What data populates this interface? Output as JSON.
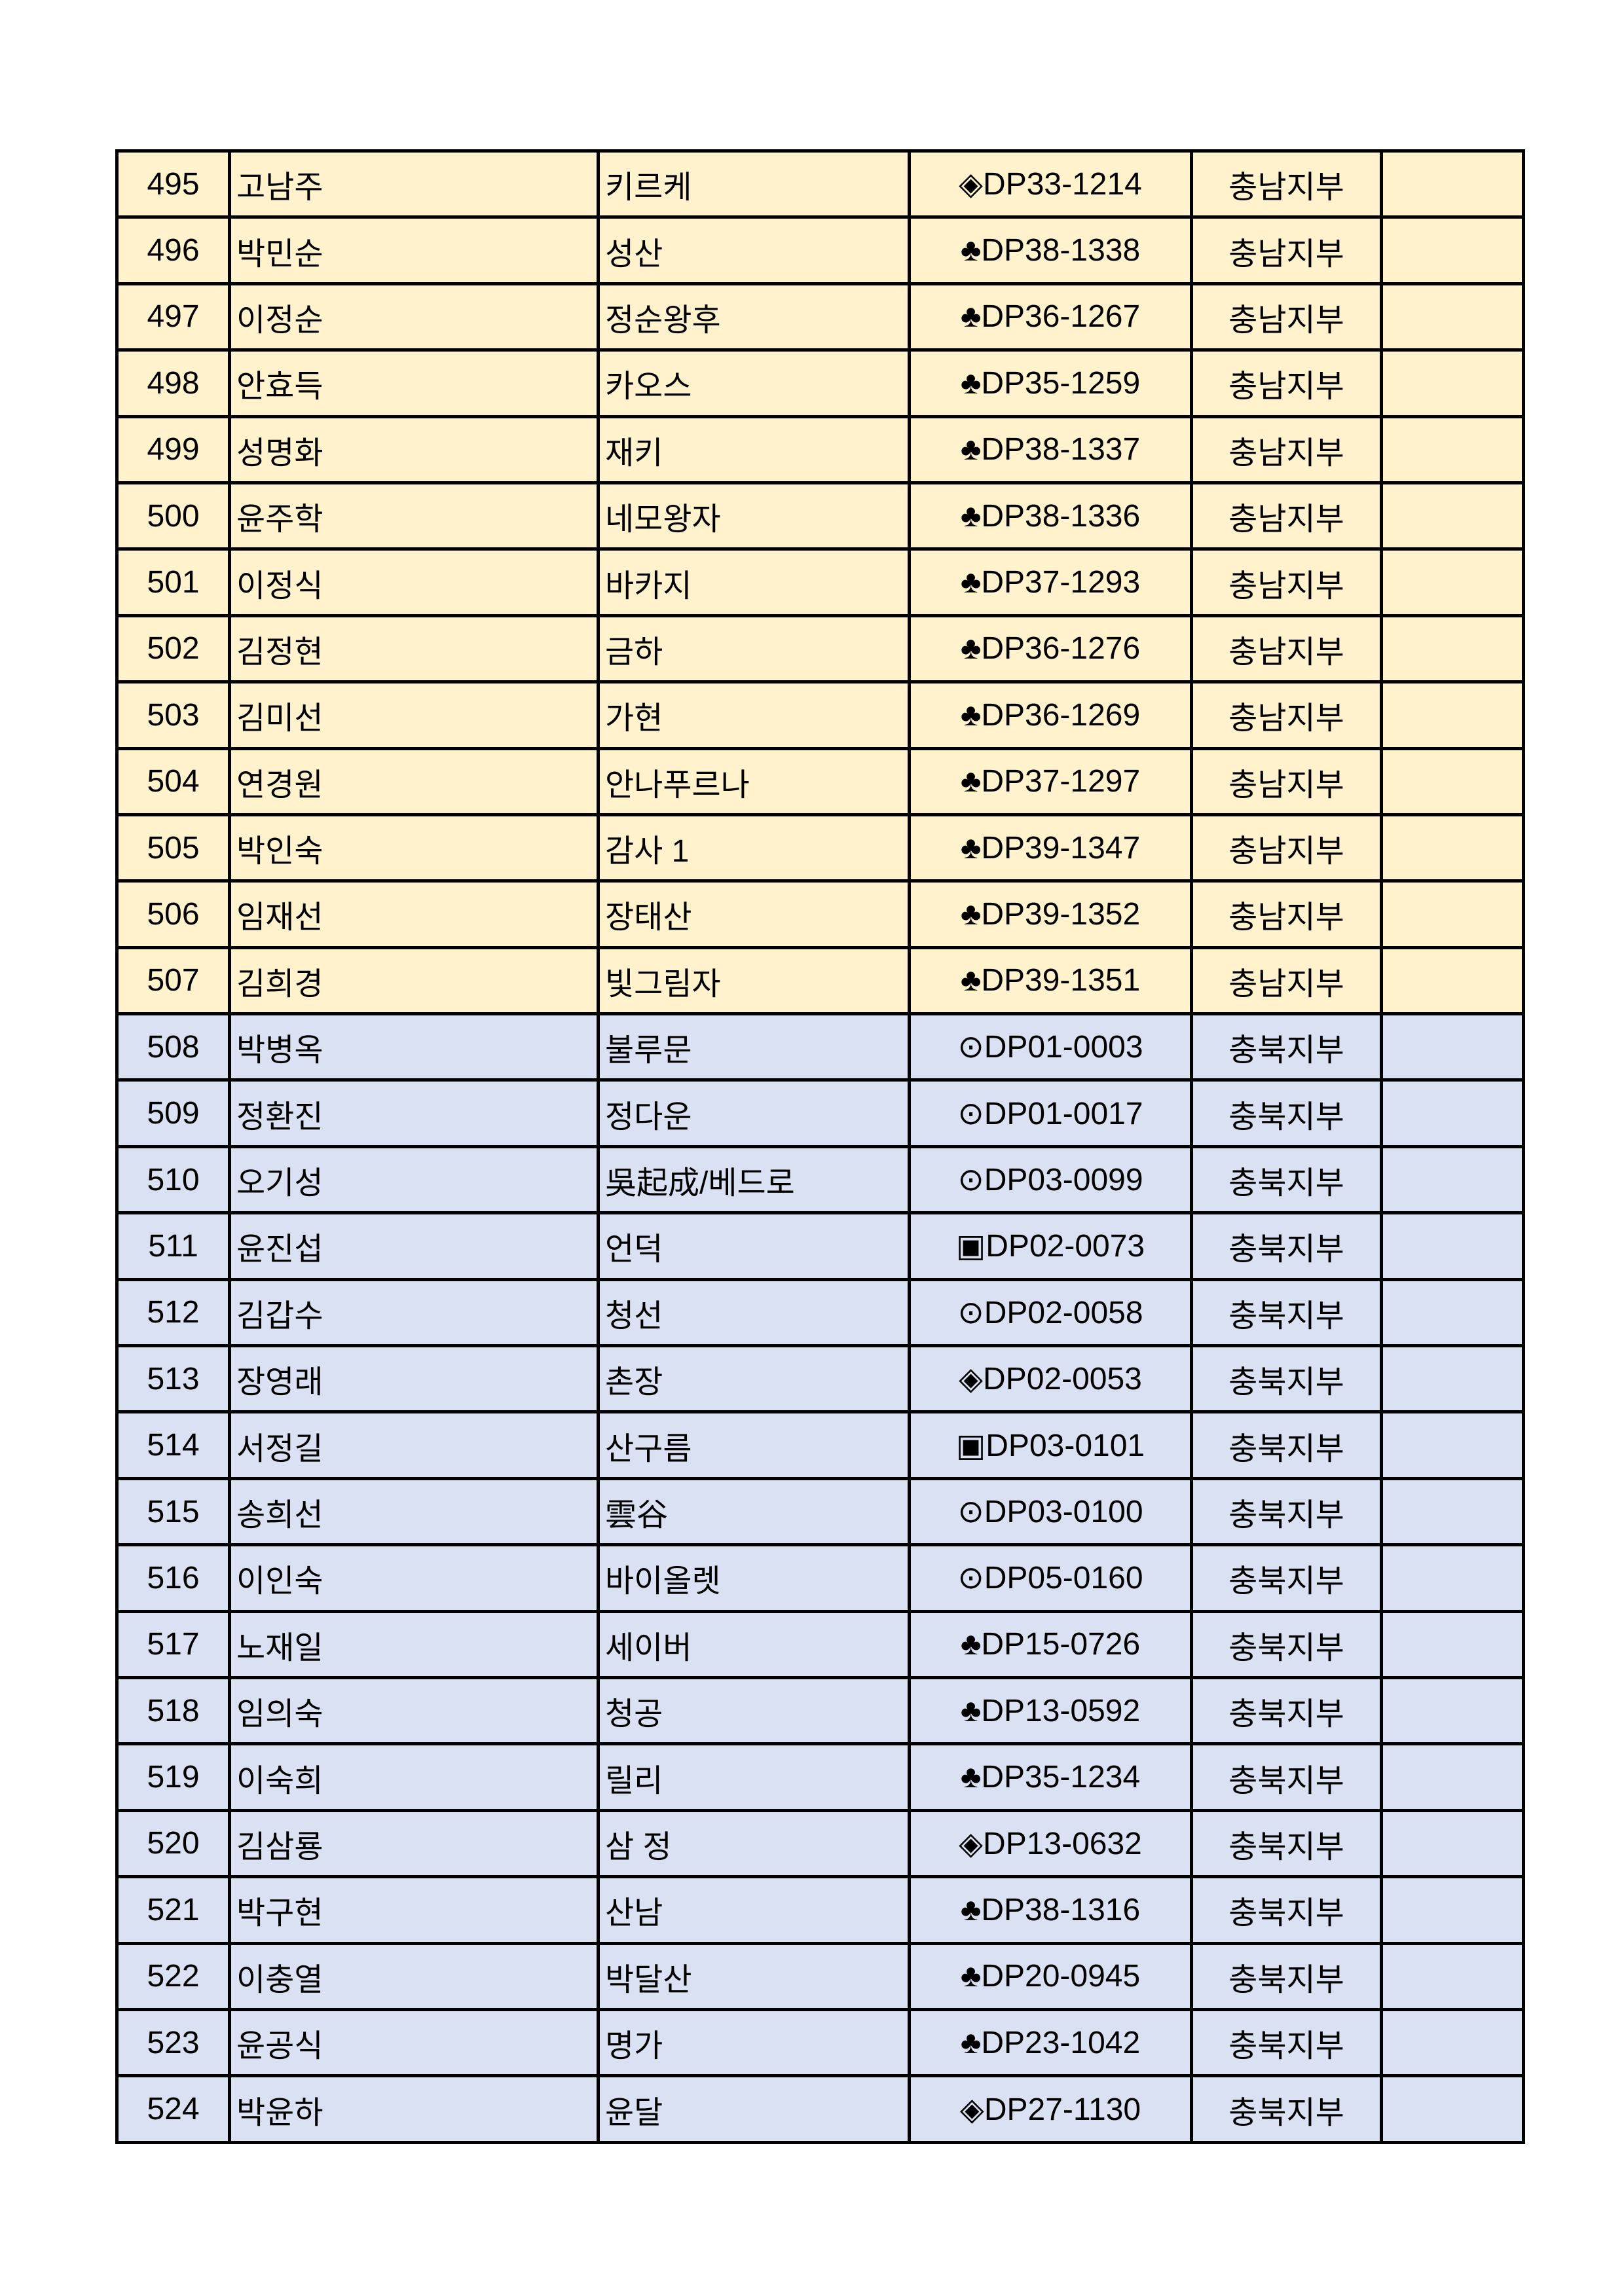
{
  "colors": {
    "충남지부": "#fff2cc",
    "충북지부": "#d9e1f2",
    "border": "#000000"
  },
  "rows": [
    {
      "no": "495",
      "name": "고남주",
      "alias": "키르케",
      "code": "◈DP33-1214",
      "branch": "충남지부",
      "note": ""
    },
    {
      "no": "496",
      "name": "박민순",
      "alias": "성산",
      "code": "♣DP38-1338",
      "branch": "충남지부",
      "note": ""
    },
    {
      "no": "497",
      "name": "이정순",
      "alias": "정순왕후",
      "code": "♣DP36-1267",
      "branch": "충남지부",
      "note": ""
    },
    {
      "no": "498",
      "name": "안효득",
      "alias": "카오스",
      "code": "♣DP35-1259",
      "branch": "충남지부",
      "note": ""
    },
    {
      "no": "499",
      "name": "성명화",
      "alias": "재키",
      "code": "♣DP38-1337",
      "branch": "충남지부",
      "note": ""
    },
    {
      "no": "500",
      "name": "윤주학",
      "alias": "네모왕자",
      "code": "♣DP38-1336",
      "branch": "충남지부",
      "note": ""
    },
    {
      "no": "501",
      "name": "이정식",
      "alias": "바카지",
      "code": "♣DP37-1293",
      "branch": "충남지부",
      "note": ""
    },
    {
      "no": "502",
      "name": "김정현",
      "alias": "금하",
      "code": "♣DP36-1276",
      "branch": "충남지부",
      "note": ""
    },
    {
      "no": "503",
      "name": "김미선",
      "alias": "가현",
      "code": "♣DP36-1269",
      "branch": "충남지부",
      "note": ""
    },
    {
      "no": "504",
      "name": "연경원",
      "alias": "안나푸르나",
      "code": "♣DP37-1297",
      "branch": "충남지부",
      "note": ""
    },
    {
      "no": "505",
      "name": "박인숙",
      "alias": "감사 1",
      "code": "♣DP39-1347",
      "branch": "충남지부",
      "note": ""
    },
    {
      "no": "506",
      "name": "임재선",
      "alias": "장태산",
      "code": "♣DP39-1352",
      "branch": "충남지부",
      "note": ""
    },
    {
      "no": "507",
      "name": "김희경",
      "alias": "빛그림자",
      "code": "♣DP39-1351",
      "branch": "충남지부",
      "note": ""
    },
    {
      "no": "508",
      "name": "박병옥",
      "alias": "불루문",
      "code": "⊙DP01-0003",
      "branch": "충북지부",
      "note": ""
    },
    {
      "no": "509",
      "name": "정환진",
      "alias": "정다운",
      "code": "⊙DP01-0017",
      "branch": "충북지부",
      "note": ""
    },
    {
      "no": "510",
      "name": "오기성",
      "alias": "吳起成/베드로",
      "code": "⊙DP03-0099",
      "branch": "충북지부",
      "note": ""
    },
    {
      "no": "511",
      "name": "윤진섭",
      "alias": "언덕",
      "code": "▣DP02-0073",
      "branch": "충북지부",
      "note": ""
    },
    {
      "no": "512",
      "name": "김갑수",
      "alias": "청선",
      "code": "⊙DP02-0058",
      "branch": "충북지부",
      "note": ""
    },
    {
      "no": "513",
      "name": "장영래",
      "alias": "촌장",
      "code": "◈DP02-0053",
      "branch": "충북지부",
      "note": ""
    },
    {
      "no": "514",
      "name": "서정길",
      "alias": "산구름",
      "code": "▣DP03-0101",
      "branch": "충북지부",
      "note": ""
    },
    {
      "no": "515",
      "name": "송희선",
      "alias": "雲谷",
      "code": "⊙DP03-0100",
      "branch": "충북지부",
      "note": ""
    },
    {
      "no": "516",
      "name": "이인숙",
      "alias": "바이올렛",
      "code": "⊙DP05-0160",
      "branch": "충북지부",
      "note": ""
    },
    {
      "no": "517",
      "name": "노재일",
      "alias": "세이버",
      "code": "♣DP15-0726",
      "branch": "충북지부",
      "note": ""
    },
    {
      "no": "518",
      "name": "임의숙",
      "alias": "청공",
      "code": "♣DP13-0592",
      "branch": "충북지부",
      "note": ""
    },
    {
      "no": "519",
      "name": "이숙희",
      "alias": "릴리",
      "code": "♣DP35-1234",
      "branch": "충북지부",
      "note": ""
    },
    {
      "no": "520",
      "name": "김삼룡",
      "alias": "삼 정",
      "code": "◈DP13-0632",
      "branch": "충북지부",
      "note": ""
    },
    {
      "no": "521",
      "name": "박구현",
      "alias": "산남",
      "code": "♣DP38-1316",
      "branch": "충북지부",
      "note": ""
    },
    {
      "no": "522",
      "name": "이충열",
      "alias": "박달산",
      "code": "♣DP20-0945",
      "branch": "충북지부",
      "note": ""
    },
    {
      "no": "523",
      "name": "윤공식",
      "alias": "명가",
      "code": "♣DP23-1042",
      "branch": "충북지부",
      "note": ""
    },
    {
      "no": "524",
      "name": "박윤하",
      "alias": "윤달",
      "code": "◈DP27-1130",
      "branch": "충북지부",
      "note": ""
    }
  ]
}
